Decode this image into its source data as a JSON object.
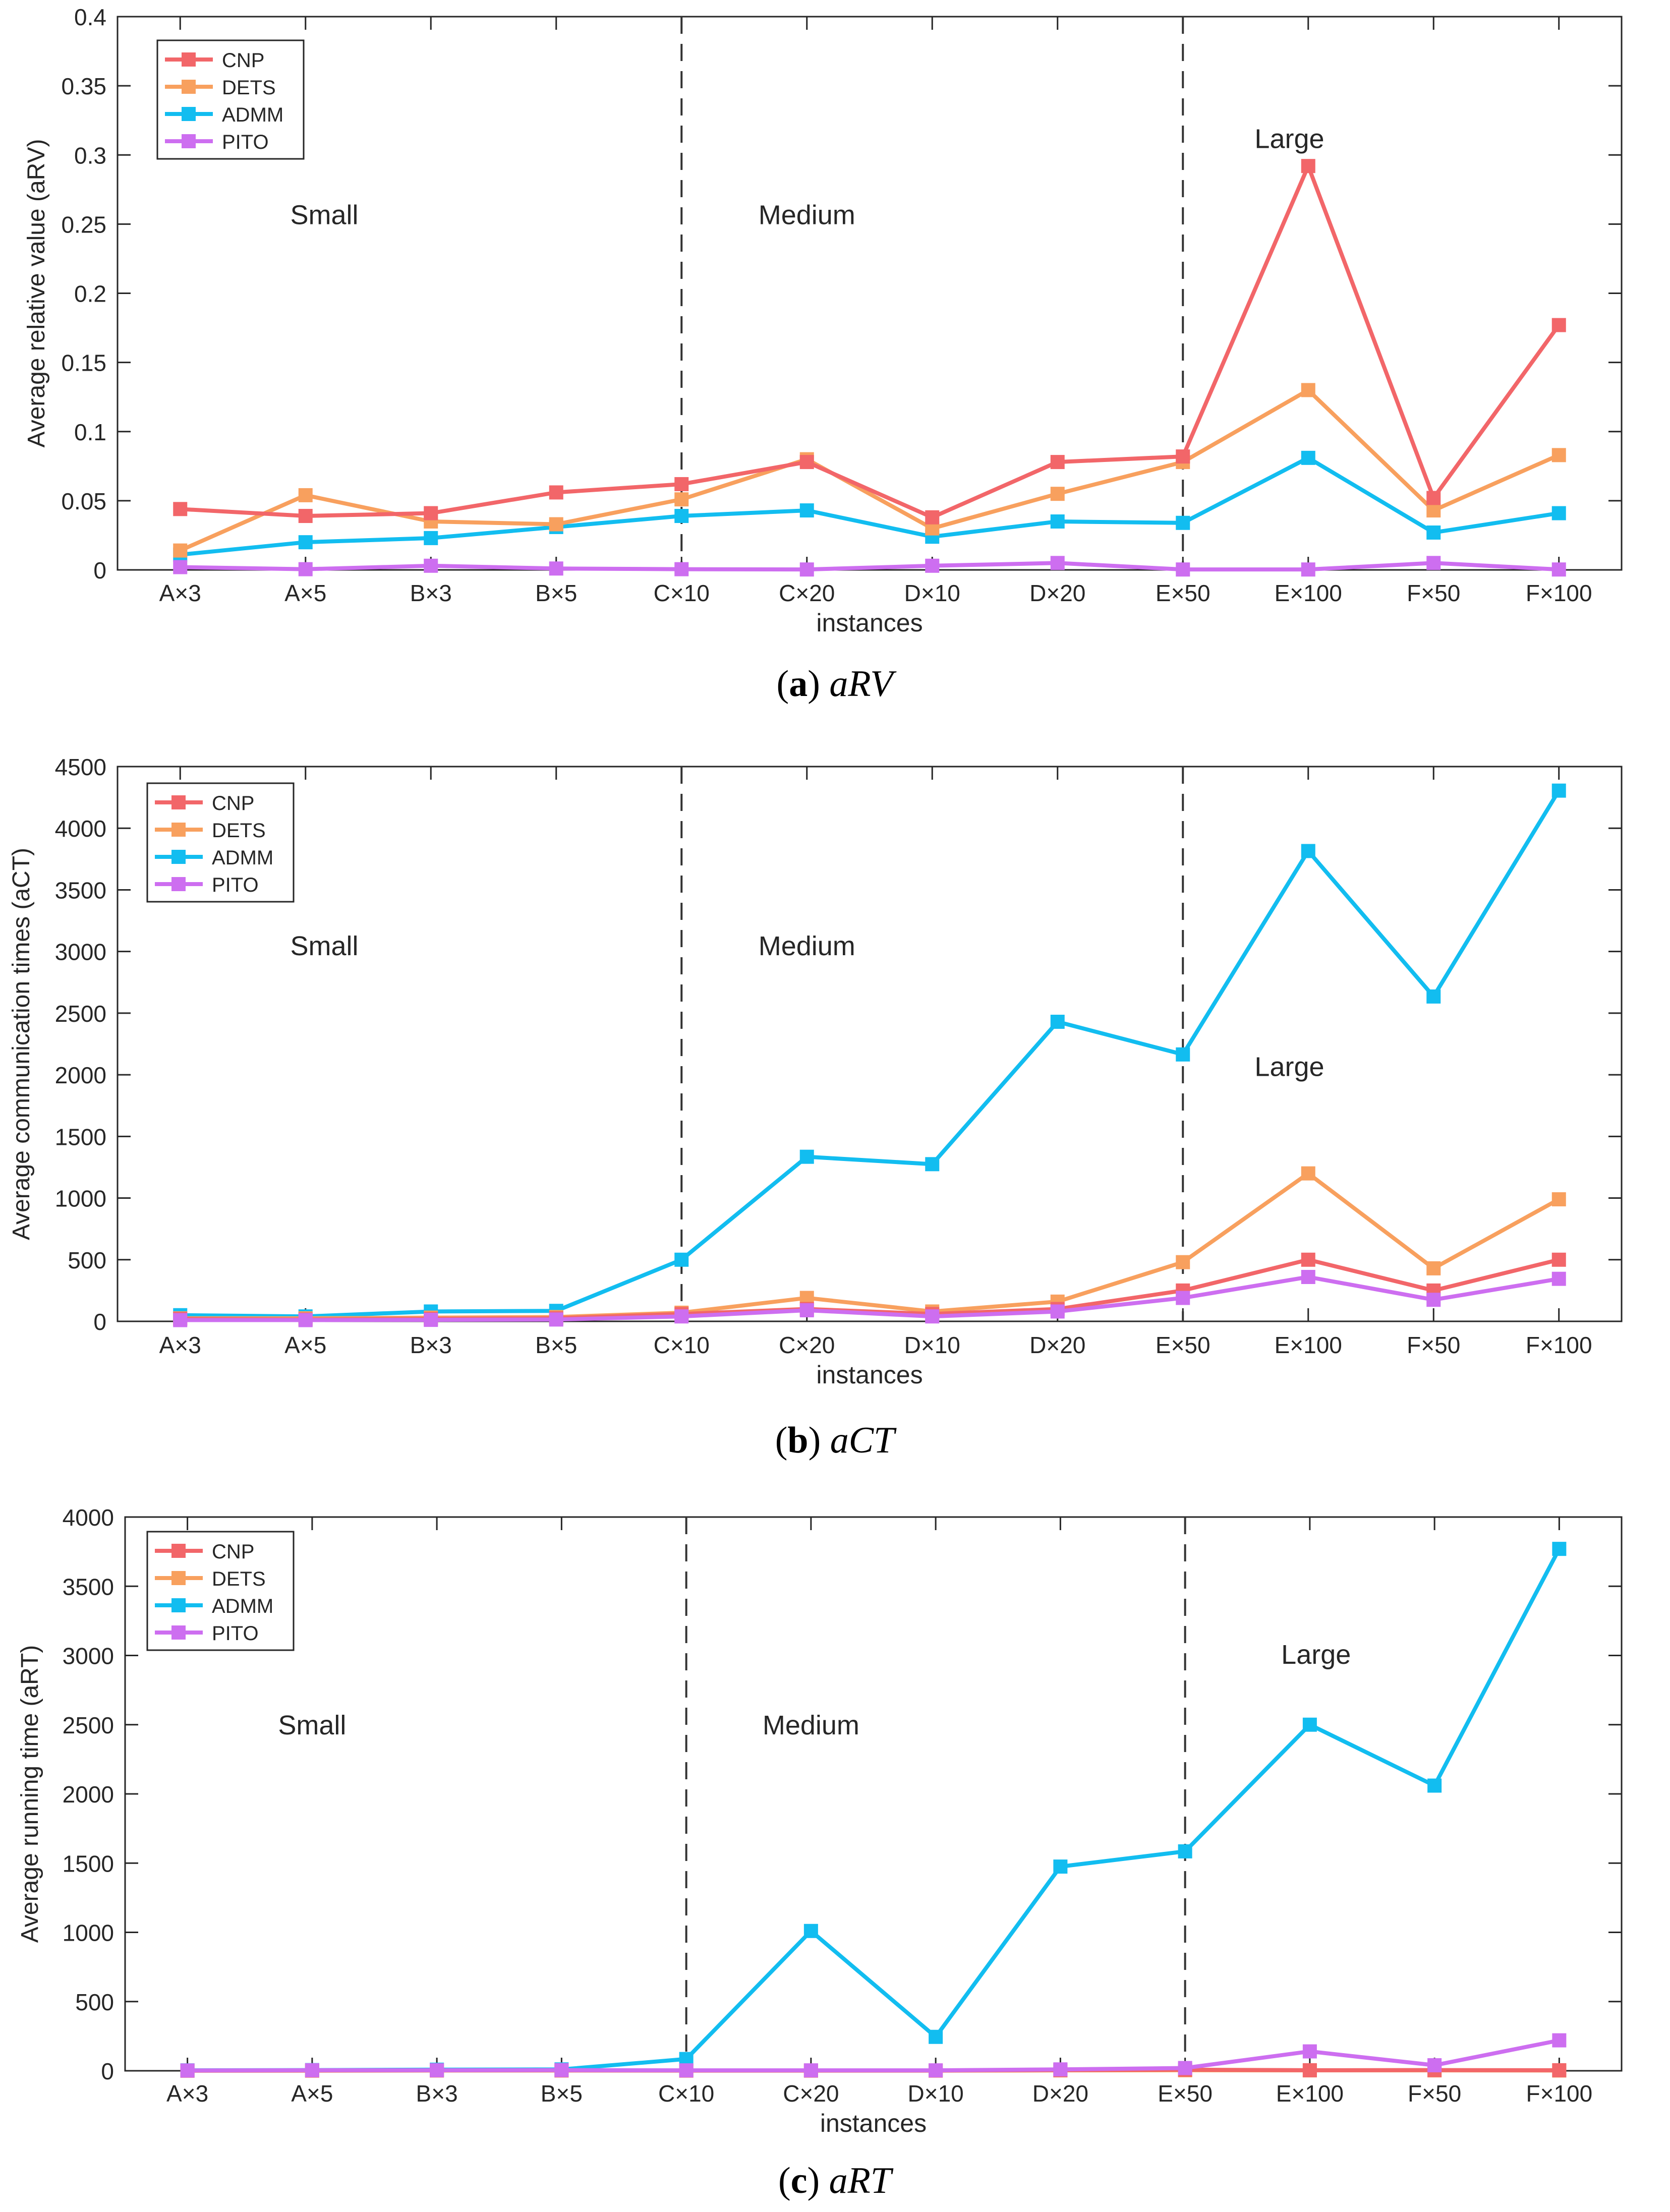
{
  "colors": {
    "CNP": "#f26669",
    "DETS": "#f8a05e",
    "ADMM": "#12bdf0",
    "PITO": "#cd6ef0",
    "axis": "#262626",
    "divider": "#333333"
  },
  "chart_data": [
    {
      "type": "line",
      "id": "a",
      "caption_letter": "a",
      "caption_metric": "aRV",
      "xlabel": "instances",
      "ylabel": "Average relative value (aRV)",
      "categories": [
        "A×3",
        "A×5",
        "B×3",
        "B×5",
        "C×10",
        "C×20",
        "D×10",
        "D×20",
        "E×50",
        "E×100",
        "F×50",
        "F×100"
      ],
      "ylim": [
        0,
        0.4
      ],
      "yticks": [
        0,
        0.05,
        0.1,
        0.15,
        0.2,
        0.25,
        0.3,
        0.35,
        0.4
      ],
      "ytick_labels": [
        "0",
        "0.05",
        "0.1",
        "0.15",
        "0.2",
        "0.25",
        "0.3",
        "0.35",
        "0.4"
      ],
      "regions": [
        {
          "label": "Small",
          "x": 1.65,
          "y": 0.25
        },
        {
          "label": "Medium",
          "x": 5.5,
          "y": 0.25
        },
        {
          "label": "Large",
          "x": 9.35,
          "y": 0.305
        }
      ],
      "dividers": [
        4.5,
        8.5
      ],
      "legend": [
        "CNP",
        "DETS",
        "ADMM",
        "PITO"
      ],
      "series": [
        {
          "name": "CNP",
          "values": [
            0.044,
            0.039,
            0.041,
            0.056,
            0.062,
            0.078,
            0.038,
            0.078,
            0.082,
            0.292,
            0.052,
            0.177
          ]
        },
        {
          "name": "DETS",
          "values": [
            0.014,
            0.054,
            0.035,
            0.033,
            0.051,
            0.08,
            0.03,
            0.055,
            0.078,
            0.13,
            0.043,
            0.083
          ]
        },
        {
          "name": "ADMM",
          "values": [
            0.011,
            0.02,
            0.023,
            0.031,
            0.039,
            0.043,
            0.024,
            0.035,
            0.034,
            0.081,
            0.027,
            0.041
          ]
        },
        {
          "name": "PITO",
          "values": [
            0.002,
            0.0005,
            0.003,
            0.001,
            0.0005,
            0.0003,
            0.003,
            0.005,
            0.0003,
            0.0003,
            0.005,
            0.0003
          ]
        }
      ]
    },
    {
      "type": "line",
      "id": "b",
      "caption_letter": "b",
      "caption_metric": "aCT",
      "xlabel": "instances",
      "ylabel": "Average communication times (aCT)",
      "categories": [
        "A×3",
        "A×5",
        "B×3",
        "B×5",
        "C×10",
        "C×20",
        "D×10",
        "D×20",
        "E×50",
        "E×100",
        "F×50",
        "F×100"
      ],
      "ylim": [
        0,
        4500
      ],
      "yticks": [
        0,
        500,
        1000,
        1500,
        2000,
        2500,
        3000,
        3500,
        4000,
        4500
      ],
      "ytick_labels": [
        "0",
        "500",
        "1000",
        "1500",
        "2000",
        "2500",
        "3000",
        "3500",
        "4000",
        "4500"
      ],
      "regions": [
        {
          "label": "Small",
          "x": 1.65,
          "y": 2970
        },
        {
          "label": "Medium",
          "x": 5.5,
          "y": 2970
        },
        {
          "label": "Large",
          "x": 9.35,
          "y": 1990
        }
      ],
      "dividers": [
        4.5,
        8.5
      ],
      "legend": [
        "CNP",
        "DETS",
        "ADMM",
        "PITO"
      ],
      "series": [
        {
          "name": "CNP",
          "values": [
            20,
            15,
            20,
            25,
            60,
            100,
            60,
            100,
            250,
            500,
            250,
            500
          ]
        },
        {
          "name": "DETS",
          "values": [
            25,
            25,
            30,
            35,
            70,
            190,
            80,
            160,
            480,
            1200,
            430,
            990
          ]
        },
        {
          "name": "ADMM",
          "values": [
            50,
            40,
            80,
            85,
            500,
            1335,
            1275,
            2430,
            2165,
            3815,
            2635,
            4305
          ]
        },
        {
          "name": "PITO",
          "values": [
            10,
            10,
            12,
            15,
            40,
            90,
            40,
            80,
            190,
            360,
            175,
            345
          ]
        }
      ]
    },
    {
      "type": "line",
      "id": "c",
      "caption_letter": "c",
      "caption_metric": "aRT",
      "xlabel": "instances",
      "ylabel": "Average running time (aRT)",
      "categories": [
        "A×3",
        "A×5",
        "B×3",
        "B×5",
        "C×10",
        "C×20",
        "D×10",
        "D×20",
        "E×50",
        "E×100",
        "F×50",
        "F×100"
      ],
      "ylim": [
        0,
        4000
      ],
      "yticks": [
        0,
        500,
        1000,
        1500,
        2000,
        2500,
        3000,
        3500,
        4000
      ],
      "ytick_labels": [
        "0",
        "500",
        "1000",
        "1500",
        "2000",
        "2500",
        "3000",
        "3500",
        "4000"
      ],
      "regions": [
        {
          "label": "Small",
          "x": 1.5,
          "y": 2430
        },
        {
          "label": "Medium",
          "x": 5.5,
          "y": 2430
        },
        {
          "label": "Large",
          "x": 9.55,
          "y": 2940
        }
      ],
      "dividers": [
        4.5,
        8.5
      ],
      "legend": [
        "CNP",
        "DETS",
        "ADMM",
        "PITO"
      ],
      "series": [
        {
          "name": "CNP",
          "values": [
            1,
            2,
            3,
            3,
            2,
            2,
            2,
            5,
            8,
            4,
            5,
            4
          ]
        },
        {
          "name": "DETS",
          "values": [
            1,
            1,
            2,
            2,
            1,
            1,
            1,
            3,
            4,
            3,
            3,
            2
          ]
        },
        {
          "name": "ADMM",
          "values": [
            3,
            5,
            8,
            10,
            85,
            1010,
            245,
            1475,
            1585,
            2500,
            2060,
            3770
          ]
        },
        {
          "name": "PITO",
          "values": [
            2,
            4,
            4,
            5,
            3,
            3,
            3,
            10,
            20,
            140,
            40,
            220
          ]
        }
      ]
    }
  ]
}
